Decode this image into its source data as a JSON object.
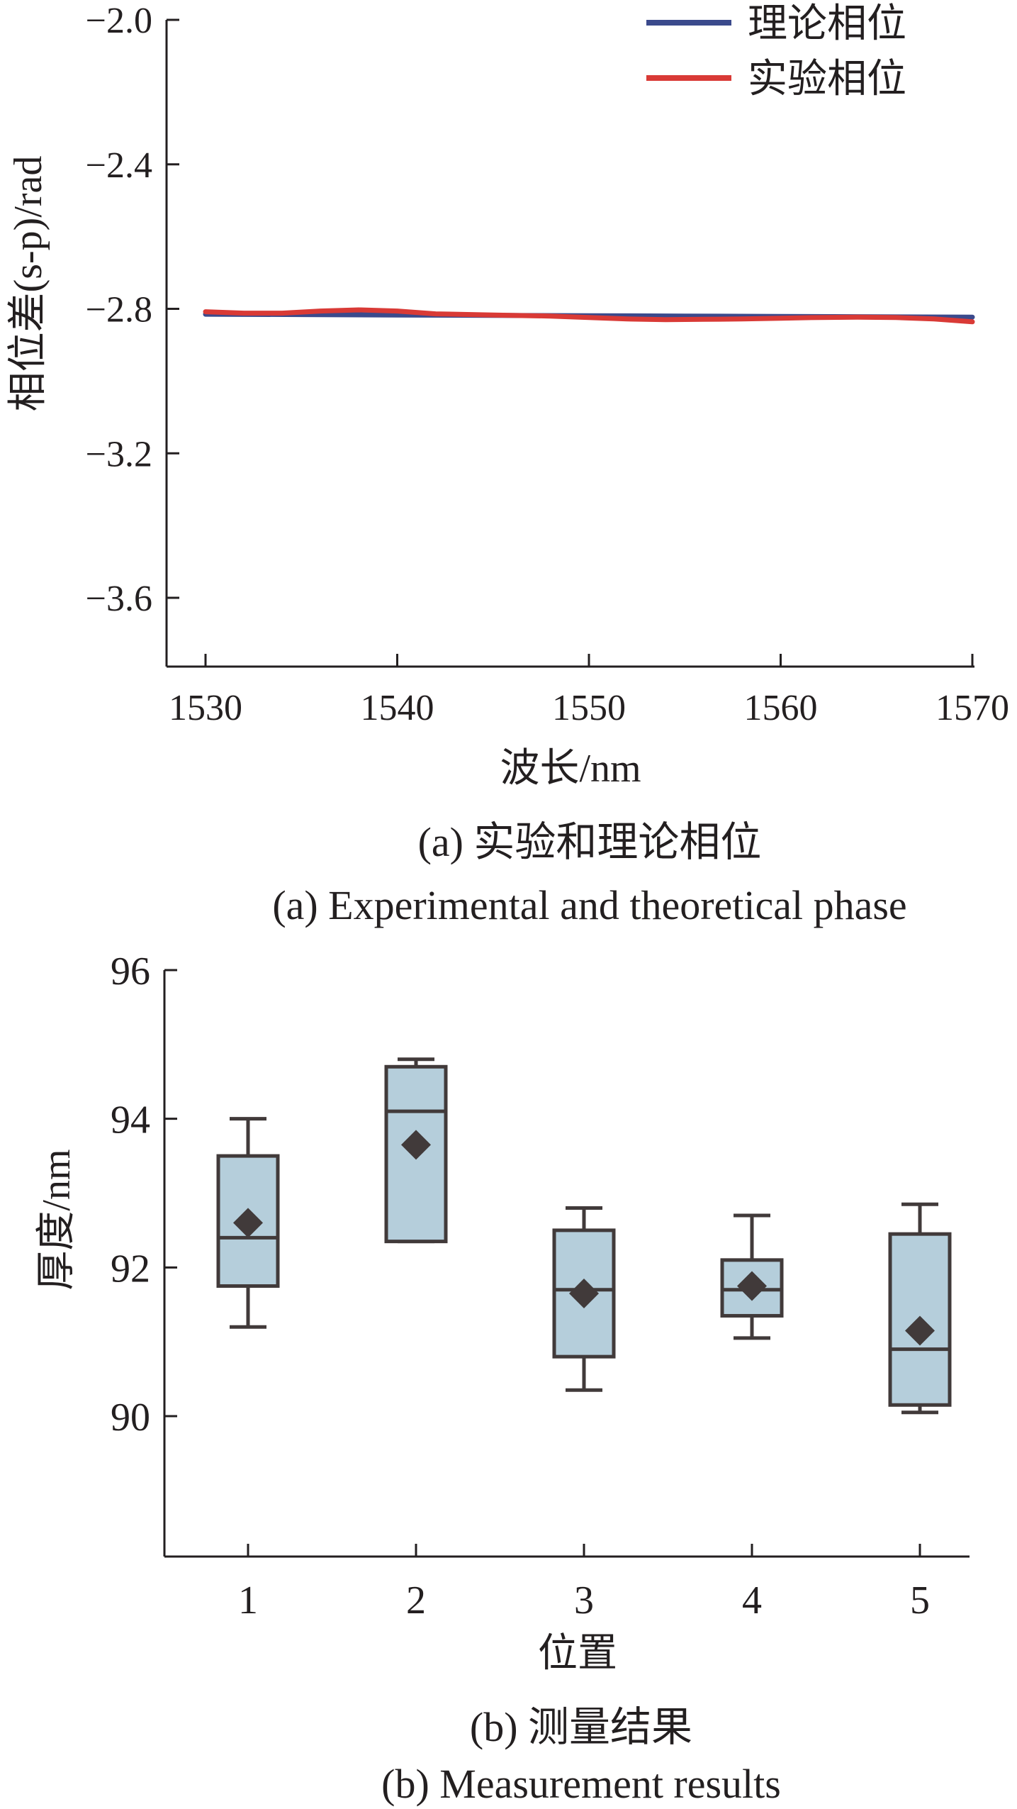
{
  "chart_data": [
    {
      "type": "line",
      "title": "",
      "xlabel": "波长/nm",
      "ylabel": "相位差(s-p)/rad",
      "xlim": [
        1528,
        1570
      ],
      "ylim": [
        -3.85,
        -2.0
      ],
      "x_ticks": [
        "1530",
        "1540",
        "1550",
        "1560",
        "1570"
      ],
      "y_ticks": [
        "−2.0",
        "−2.4",
        "−2.8",
        "−3.2",
        "−3.6"
      ],
      "x_tick_values": [
        1530,
        1540,
        1550,
        1560,
        1570
      ],
      "y_tick_values": [
        -2.0,
        -2.4,
        -2.8,
        -3.2,
        -3.6
      ],
      "legend_placement": "top-right",
      "series": [
        {
          "name": "理论相位",
          "color": "#3b4a8c",
          "x": [
            1530,
            1535,
            1540,
            1545,
            1550,
            1555,
            1560,
            1565,
            1570
          ],
          "y": [
            -2.815,
            -2.816,
            -2.817,
            -2.818,
            -2.819,
            -2.82,
            -2.821,
            -2.822,
            -2.823
          ]
        },
        {
          "name": "实验相位",
          "color": "#d93a36",
          "x": [
            1530,
            1532,
            1534,
            1536,
            1538,
            1540,
            1542,
            1545,
            1548,
            1550,
            1552,
            1554,
            1556,
            1558,
            1560,
            1562,
            1564,
            1566,
            1568,
            1570
          ],
          "y": [
            -2.808,
            -2.812,
            -2.812,
            -2.806,
            -2.803,
            -2.806,
            -2.814,
            -2.817,
            -2.82,
            -2.824,
            -2.828,
            -2.83,
            -2.829,
            -2.828,
            -2.826,
            -2.824,
            -2.823,
            -2.824,
            -2.828,
            -2.836
          ]
        }
      ],
      "caption_cn": "(a) 实验和理论相位",
      "caption_en": "(a) Experimental and theoretical phase"
    },
    {
      "type": "box",
      "title": "",
      "xlabel": "位置",
      "ylabel": "厚度/nm",
      "ylim": [
        88.2,
        96.0
      ],
      "categories": [
        "1",
        "2",
        "3",
        "4",
        "5"
      ],
      "y_ticks": [
        "96",
        "94",
        "92",
        "90"
      ],
      "y_tick_values": [
        96,
        94,
        92,
        90
      ],
      "box_color": "#b5cedb",
      "edge_color": "#413a3a",
      "boxes": [
        {
          "whisker_low": 91.2,
          "q1": 91.75,
          "median": 92.4,
          "q3": 93.5,
          "whisker_high": 94.0,
          "mean": 92.6
        },
        {
          "whisker_low": 92.35,
          "q1": 92.35,
          "median": 94.1,
          "q3": 94.7,
          "whisker_high": 94.8,
          "mean": 93.65
        },
        {
          "whisker_low": 90.35,
          "q1": 90.8,
          "median": 91.7,
          "q3": 92.5,
          "whisker_high": 92.8,
          "mean": 91.65
        },
        {
          "whisker_low": 91.05,
          "q1": 91.35,
          "median": 91.7,
          "q3": 92.1,
          "whisker_high": 92.7,
          "mean": 91.75
        },
        {
          "whisker_low": 90.05,
          "q1": 90.15,
          "median": 90.9,
          "q3": 92.45,
          "whisker_high": 92.85,
          "mean": 91.15
        }
      ],
      "caption_cn": "(b) 测量结果",
      "caption_en": "(b) Measurement results"
    }
  ]
}
